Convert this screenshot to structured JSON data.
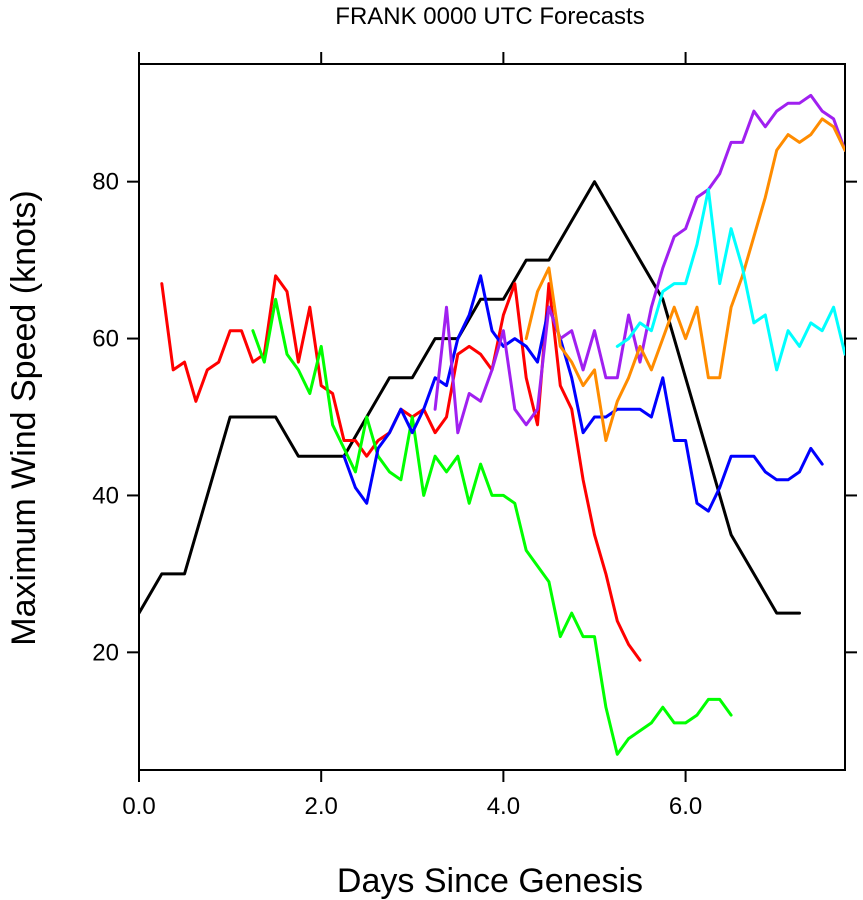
{
  "chart_data": {
    "type": "line",
    "title": "FRANK 0000 UTC Forecasts",
    "xlabel": "Days Since Genesis",
    "ylabel": "Maximum Wind Speed (knots)",
    "xlim": [
      0,
      7.75
    ],
    "ylim": [
      5,
      95
    ],
    "x_ticks": [
      0,
      2,
      4,
      6
    ],
    "x_tick_labels": [
      "0.0",
      "2.0",
      "4.0",
      "6.0"
    ],
    "y_ticks": [
      20,
      40,
      60,
      80
    ],
    "y_tick_labels": [
      "20",
      "40",
      "60",
      "80"
    ],
    "grid": false,
    "series": [
      {
        "color": "#000000",
        "x": [
          0,
          0.25,
          0.5,
          0.75,
          1.0,
          1.25,
          1.5,
          1.75,
          2.0,
          2.25,
          2.5,
          2.75,
          3.0,
          3.25,
          3.5,
          3.75,
          4.0,
          4.25,
          4.5,
          4.75,
          5.0,
          5.25,
          5.5,
          5.75,
          6.0,
          6.25,
          6.5,
          6.75,
          7.0,
          7.25
        ],
        "values": [
          25,
          30,
          30,
          40,
          50,
          50,
          50,
          45,
          45,
          45,
          50,
          55,
          55,
          60,
          60,
          65,
          65,
          70,
          70,
          75,
          80,
          75,
          70,
          65,
          55,
          45,
          35,
          30,
          25,
          25
        ]
      },
      {
        "color": "#ff0000",
        "x": [
          0.25,
          0.375,
          0.5,
          0.625,
          0.75,
          0.875,
          1.0,
          1.125,
          1.25,
          1.375,
          1.5,
          1.625,
          1.75,
          1.875,
          2.0,
          2.125,
          2.25,
          2.375,
          2.5,
          2.625,
          2.75,
          2.875,
          3.0,
          3.125,
          3.25,
          3.375,
          3.5,
          3.625,
          3.75,
          3.875,
          4.0,
          4.125,
          4.25,
          4.375,
          4.5,
          4.625,
          4.75,
          4.875,
          5.0,
          5.125,
          5.25,
          5.375,
          5.5
        ],
        "values": [
          67,
          56,
          57,
          52,
          56,
          57,
          61,
          61,
          57,
          58,
          68,
          66,
          57,
          64,
          54,
          53,
          47,
          47,
          45,
          47,
          48,
          51,
          50,
          51,
          48,
          50,
          58,
          59,
          58,
          56,
          63,
          67,
          55,
          49,
          67,
          54,
          51,
          42,
          35,
          30,
          24,
          21,
          19
        ]
      },
      {
        "color": "#00ff00",
        "x": [
          1.25,
          1.375,
          1.5,
          1.625,
          1.75,
          1.875,
          2.0,
          2.125,
          2.25,
          2.375,
          2.5,
          2.625,
          2.75,
          2.875,
          3.0,
          3.125,
          3.25,
          3.375,
          3.5,
          3.625,
          3.75,
          3.875,
          4.0,
          4.125,
          4.25,
          4.375,
          4.5,
          4.625,
          4.75,
          4.875,
          5.0,
          5.125,
          5.25,
          5.375,
          5.5,
          5.625,
          5.75,
          5.875,
          6.0,
          6.125,
          6.25,
          6.375,
          6.5
        ],
        "values": [
          61,
          57,
          65,
          58,
          56,
          53,
          59,
          49,
          46,
          43,
          50,
          45,
          43,
          42,
          50,
          40,
          45,
          43,
          45,
          39,
          44,
          40,
          40,
          39,
          33,
          31,
          29,
          22,
          25,
          22,
          22,
          13,
          7,
          9,
          10,
          11,
          13,
          11,
          11,
          12,
          14,
          14,
          12
        ]
      },
      {
        "color": "#0000ff",
        "x": [
          2.25,
          2.375,
          2.5,
          2.625,
          2.75,
          2.875,
          3.0,
          3.125,
          3.25,
          3.375,
          3.5,
          3.625,
          3.75,
          3.875,
          4.0,
          4.125,
          4.25,
          4.375,
          4.5,
          4.625,
          4.75,
          4.875,
          5.0,
          5.125,
          5.25,
          5.375,
          5.5,
          5.625,
          5.75,
          5.875,
          6.0,
          6.125,
          6.25,
          6.375,
          6.5,
          6.625,
          6.75,
          6.875,
          7.0,
          7.125,
          7.25,
          7.375,
          7.5
        ],
        "values": [
          45,
          41,
          39,
          46,
          48,
          51,
          48,
          51,
          55,
          54,
          60,
          63,
          68,
          61,
          59,
          60,
          59,
          57,
          64,
          60,
          55,
          48,
          50,
          50,
          51,
          51,
          51,
          50,
          55,
          47,
          47,
          39,
          38,
          41,
          45,
          45,
          45,
          43,
          42,
          42,
          43,
          46,
          44
        ]
      },
      {
        "color": "#a020f0",
        "x": [
          3.25,
          3.375,
          3.5,
          3.625,
          3.75,
          3.875,
          4.0,
          4.125,
          4.25,
          4.375,
          4.5,
          4.625,
          4.75,
          4.875,
          5.0,
          5.125,
          5.25,
          5.375,
          5.5,
          5.625,
          5.75,
          5.875,
          6.0,
          6.125,
          6.25,
          6.375,
          6.5,
          6.625,
          6.75,
          6.875,
          7.0,
          7.125,
          7.25,
          7.375,
          7.5,
          7.625,
          7.75
        ],
        "values": [
          51,
          64,
          48,
          53,
          52,
          56,
          61,
          51,
          49,
          51,
          64,
          60,
          61,
          56,
          61,
          55,
          55,
          63,
          57,
          64,
          69,
          73,
          74,
          78,
          79,
          81,
          85,
          85,
          89,
          87,
          89,
          90,
          90,
          91,
          89,
          88,
          84
        ]
      },
      {
        "color": "#ff8c00",
        "x": [
          4.25,
          4.375,
          4.5,
          4.625,
          4.75,
          4.875,
          5.0,
          5.125,
          5.25,
          5.375,
          5.5,
          5.625,
          5.75,
          5.875,
          6.0,
          6.125,
          6.25,
          6.375,
          6.5,
          6.625,
          6.75,
          6.875,
          7.0,
          7.125,
          7.25,
          7.375,
          7.5,
          7.625,
          7.75
        ],
        "values": [
          60,
          66,
          69,
          59,
          57,
          54,
          56,
          47,
          52,
          55,
          59,
          56,
          60,
          64,
          60,
          64,
          55,
          55,
          64,
          68,
          73,
          78,
          84,
          86,
          85,
          86,
          88,
          87,
          84
        ]
      },
      {
        "color": "#00ffff",
        "x": [
          5.25,
          5.375,
          5.5,
          5.625,
          5.75,
          5.875,
          6.0,
          6.125,
          6.25,
          6.375,
          6.5,
          6.625,
          6.75,
          6.875,
          7.0,
          7.125,
          7.25,
          7.375,
          7.5,
          7.625,
          7.75
        ],
        "values": [
          59,
          60,
          62,
          61,
          66,
          67,
          67,
          72,
          79,
          67,
          74,
          69,
          62,
          63,
          56,
          61,
          59,
          62,
          61,
          64,
          58
        ]
      }
    ]
  }
}
